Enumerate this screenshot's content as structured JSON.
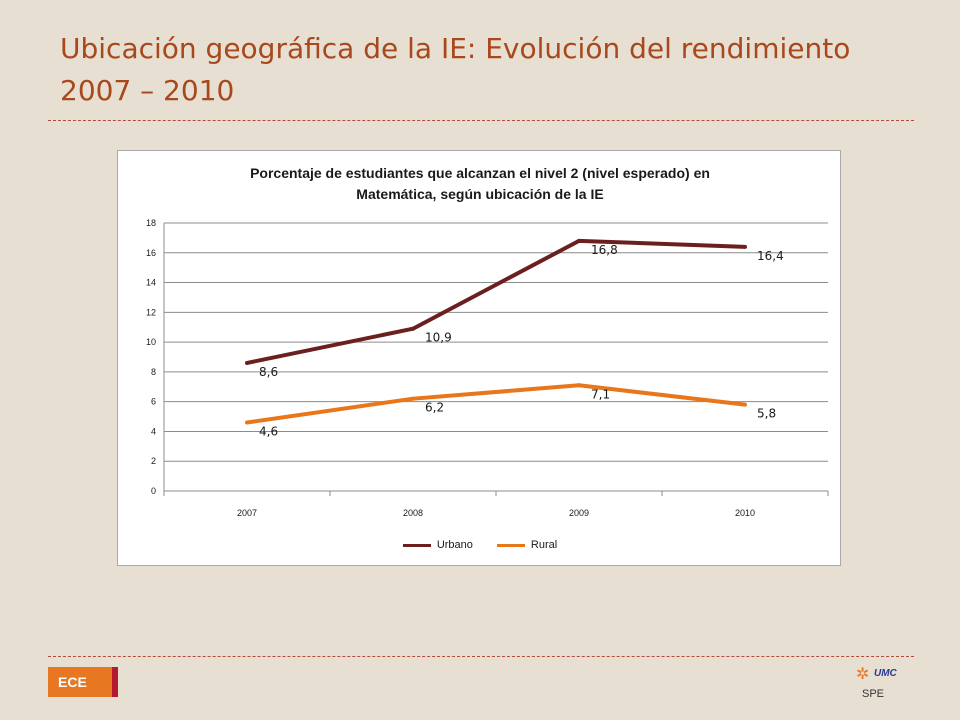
{
  "slide": {
    "title_line1": "Ubicación geográfica de la IE: Evolución del rendimiento",
    "title_line2": "2007 – 2010",
    "badge": "ECE",
    "logo_text": "UMC",
    "logo_sub": "SPE",
    "colors": {
      "title": "#a8481c",
      "background": "#e7dfd2",
      "badge": "#e87722",
      "badge_edge": "#b5192f"
    }
  },
  "chart_data": {
    "type": "line",
    "title_line1": "Porcentaje de estudiantes que alcanzan el nivel 2 (nivel esperado) en",
    "title_line2": "Matemática, según ubicación de la IE",
    "categories": [
      "2007",
      "2008",
      "2009",
      "2010"
    ],
    "series": [
      {
        "name": "Urbano",
        "values": [
          8.6,
          10.9,
          16.8,
          16.4
        ],
        "labels": [
          "8,6",
          "10,9",
          "16,8",
          "16,4"
        ],
        "color": "#6b1f1f"
      },
      {
        "name": "Rural",
        "values": [
          4.6,
          6.2,
          7.1,
          5.8
        ],
        "labels": [
          "4,6",
          "6,2",
          "7,1",
          "5,8"
        ],
        "color": "#e8761a"
      }
    ],
    "ylim": [
      0,
      18
    ],
    "yticks": [
      "0",
      "2",
      "4",
      "6",
      "8",
      "10",
      "12",
      "14",
      "16",
      "18"
    ],
    "grid": true,
    "legend": "bottom"
  }
}
